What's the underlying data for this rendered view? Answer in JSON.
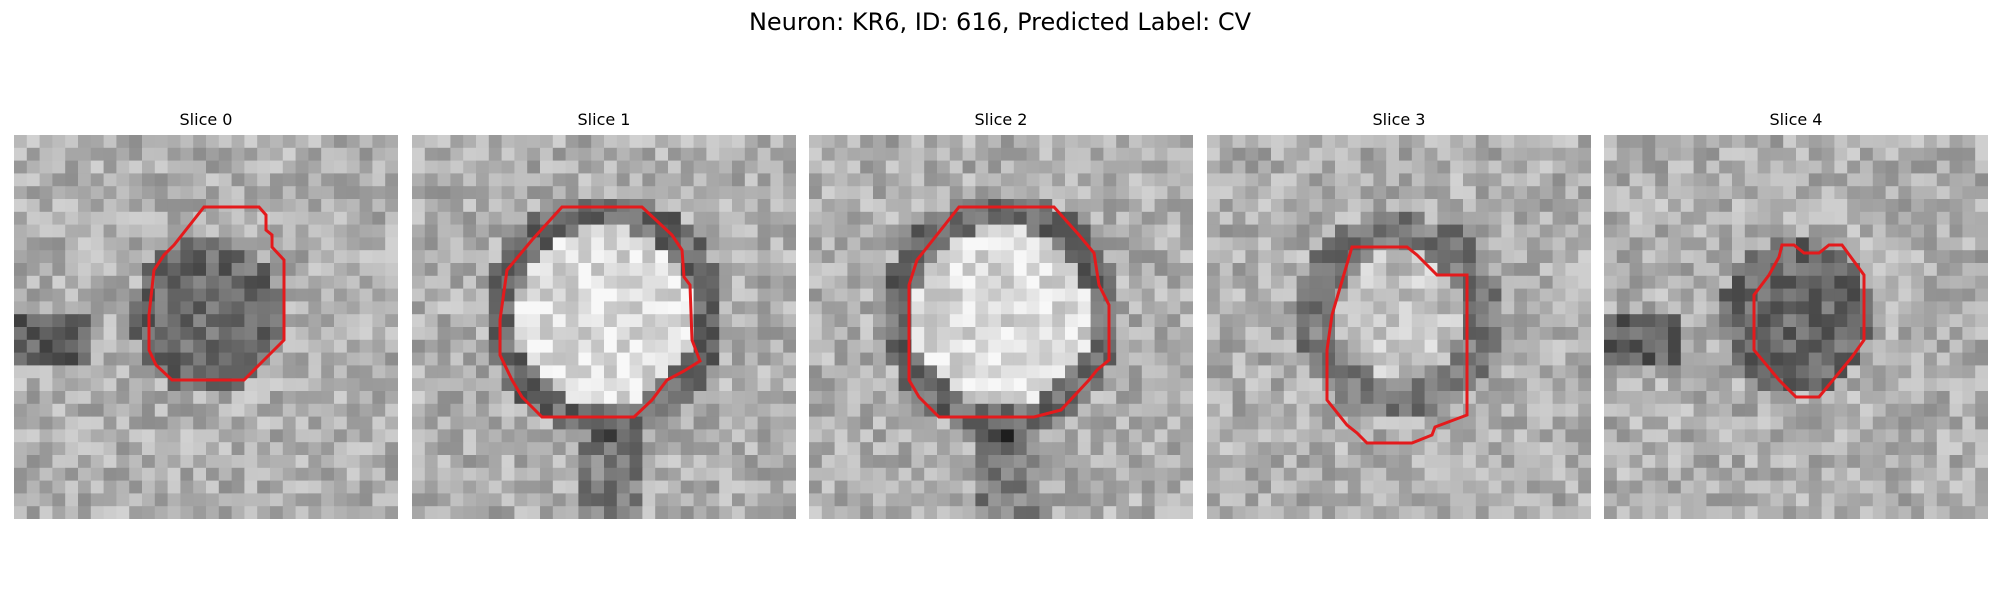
{
  "figure": {
    "title": "Neuron: KR6, ID: 616, Predicted Label: CV"
  },
  "panels": [
    {
      "title": "Slice 0",
      "contour_color": "#e41a1c",
      "blob": "dark",
      "grid_size": 30
    },
    {
      "title": "Slice 1",
      "contour_color": "#e41a1c",
      "blob": "bright",
      "grid_size": 30
    },
    {
      "title": "Slice 2",
      "contour_color": "#e41a1c",
      "blob": "bright",
      "grid_size": 30
    },
    {
      "title": "Slice 3",
      "contour_color": "#e41a1c",
      "blob": "bright-ring",
      "grid_size": 30
    },
    {
      "title": "Slice 4",
      "contour_color": "#e41a1c",
      "blob": "dark",
      "grid_size": 30
    }
  ]
}
